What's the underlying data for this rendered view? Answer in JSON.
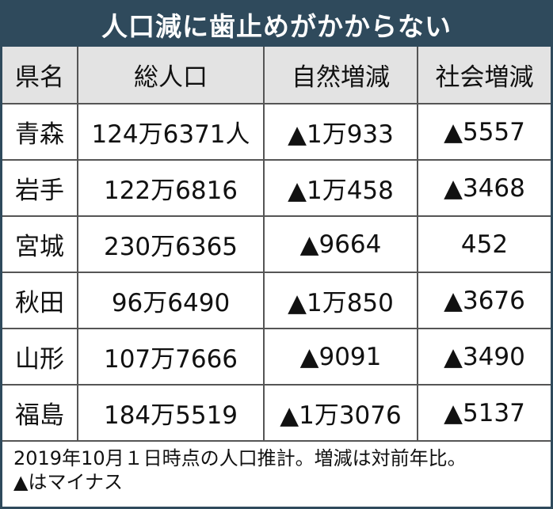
{
  "title": "人口減に歯止めがかからない",
  "table": {
    "headers": [
      "県名",
      "総人口",
      "自然増減",
      "社会増減"
    ],
    "rows": [
      [
        "青森",
        "124万6371人",
        "▲1万933",
        "▲5557"
      ],
      [
        "岩手",
        "122万6816",
        "▲1万458",
        "▲3468"
      ],
      [
        "宮城",
        "230万6365",
        "▲9664",
        "452"
      ],
      [
        "秋田",
        "96万6490",
        "▲1万850",
        "▲3676"
      ],
      [
        "山形",
        "107万7666",
        "▲9091",
        "▲3490"
      ],
      [
        "福島",
        "184万5519",
        "▲1万3076",
        "▲5137"
      ]
    ]
  },
  "footnote": {
    "line1": "2019年10月１日時点の人口推計。増減は対前年比。",
    "line2": "▲はマイナス"
  },
  "colors": {
    "title_bg": "#2f4a5c",
    "header_bg": "#e3e3e3"
  }
}
